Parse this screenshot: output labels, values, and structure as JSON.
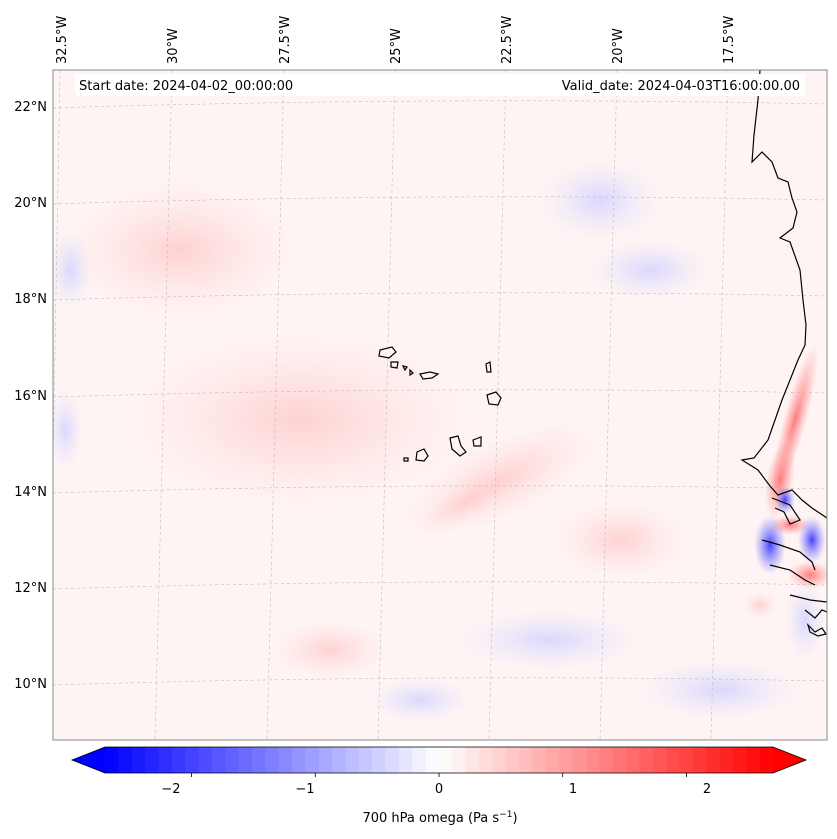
{
  "map": {
    "title_left": "Start date: 2024-04-02_00:00:00",
    "title_right": "Valid_date: 2024-04-03T16:00:00.00",
    "lon_labels": [
      "32.5°W",
      "30°W",
      "27.5°W",
      "25°W",
      "22.5°W",
      "20°W",
      "17.5°W"
    ],
    "lat_labels": [
      "22°N",
      "20°N",
      "18°N",
      "16°N",
      "14°N",
      "12°N",
      "10°N"
    ],
    "variable": "700 hPa omega",
    "units": "Pa s",
    "units_exponent": "−1"
  },
  "colorbar": {
    "ticks": [
      "−2",
      "−1",
      "0",
      "1",
      "2"
    ],
    "tick_values": [
      -2,
      -1,
      0,
      1,
      2
    ],
    "vmin": -2.7,
    "vmax": 2.7,
    "low_color": "#0000ff",
    "mid_color": "#ffffff",
    "high_color": "#ff0000"
  },
  "colors": {
    "coast": "#000000",
    "grid": "#bbbbbb"
  }
}
